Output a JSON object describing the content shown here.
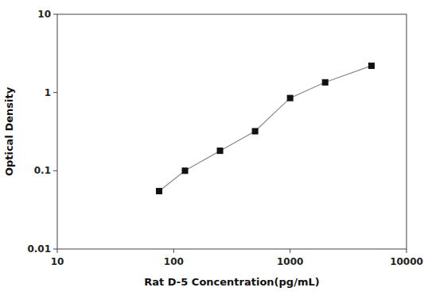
{
  "chart_data": {
    "type": "line",
    "x": [
      75,
      125,
      250,
      500,
      1000,
      2000,
      5000
    ],
    "values": [
      0.055,
      0.1,
      0.18,
      0.32,
      0.85,
      1.35,
      2.2
    ],
    "xlabel": "Rat D-5 Concentration(pg/mL)",
    "ylabel": "Optical Density",
    "xlim": [
      10,
      10000
    ],
    "ylim": [
      0.01,
      10
    ],
    "xticks": [
      10,
      100,
      1000,
      10000
    ],
    "yticks": [
      0.01,
      0.1,
      1,
      10
    ],
    "log": true,
    "grid": false,
    "color": "#888888",
    "marker": "square"
  }
}
